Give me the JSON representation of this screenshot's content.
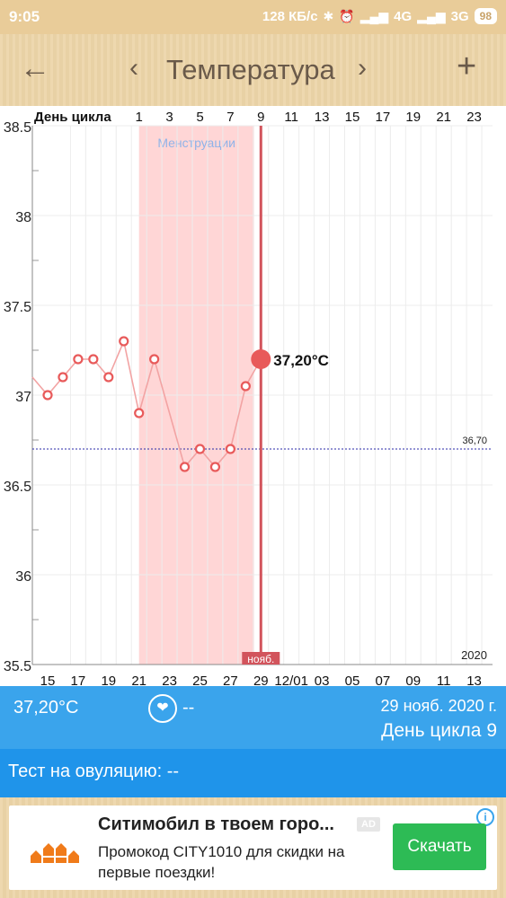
{
  "status_bar": {
    "time": "9:05",
    "network_speed": "128 КБ/с",
    "net1": "4G",
    "net2": "3G",
    "battery": "98"
  },
  "app_bar": {
    "back_icon": "arrow-left-icon",
    "prev_icon": "chevron-left-icon",
    "title": "Температура",
    "next_icon": "chevron-right-icon",
    "add_icon": "plus-icon"
  },
  "chart_data": {
    "type": "line",
    "top_axis_label": "День цикла",
    "top_ticks": [
      "1",
      "3",
      "5",
      "7",
      "9",
      "11",
      "13",
      "15",
      "17",
      "19",
      "21",
      "23"
    ],
    "bottom_ticks": [
      "15",
      "17",
      "19",
      "21",
      "23",
      "25",
      "27",
      "29",
      "12/01",
      "03",
      "05",
      "07",
      "09",
      "11",
      "13"
    ],
    "y_ticks": [
      "38.5",
      "38",
      "37.5",
      "37",
      "36.5",
      "36",
      "35.5"
    ],
    "ylim": [
      35.5,
      38.5
    ],
    "year_label": "2020",
    "month_marker": "нояб.",
    "period_label": "Менструации",
    "period_start_date": "2020-11-21",
    "period_end_date": "2020-11-28",
    "cover_line_label": "36,70",
    "cover_line": 36.7,
    "x_start": "2020-11-14",
    "x_end": "2020-12-13",
    "series": [
      {
        "dates": [
          "2020-11-14",
          "2020-11-15",
          "2020-11-16",
          "2020-11-17",
          "2020-11-18",
          "2020-11-19",
          "2020-11-20",
          "2020-11-21",
          "2020-11-22",
          "2020-11-24",
          "2020-11-25",
          "2020-11-26",
          "2020-11-27",
          "2020-11-28",
          "2020-11-29"
        ],
        "values": [
          37.1,
          37.0,
          37.1,
          37.2,
          37.2,
          37.1,
          37.3,
          36.9,
          37.2,
          36.6,
          36.7,
          36.6,
          36.7,
          37.05,
          37.2
        ]
      }
    ],
    "selected_date": "2020-11-29",
    "selected_value_label": "37,20°C",
    "colors": {
      "line": "#f2a3a3",
      "marker": "#e85a5a",
      "period_band": "#ffd6d6",
      "selected": "#d2545c",
      "cover": "#2a2aa8"
    }
  },
  "info": {
    "temperature": "37,20°C",
    "heart_icon": "heart-icon",
    "heart_value": "--",
    "date": "29 нояб. 2020 г.",
    "cycle_day": "День цикла 9"
  },
  "ovulation": {
    "label": "Тест на овуляцию: --"
  },
  "ad": {
    "headline": "Ситимобил в твоем горо...",
    "badge": "AD",
    "body": "Промокод CITY1010 для скидки на первые поездки!",
    "cta": "Скачать",
    "info_icon": "info-icon",
    "logo_icon": "citymobil-logo-icon"
  }
}
